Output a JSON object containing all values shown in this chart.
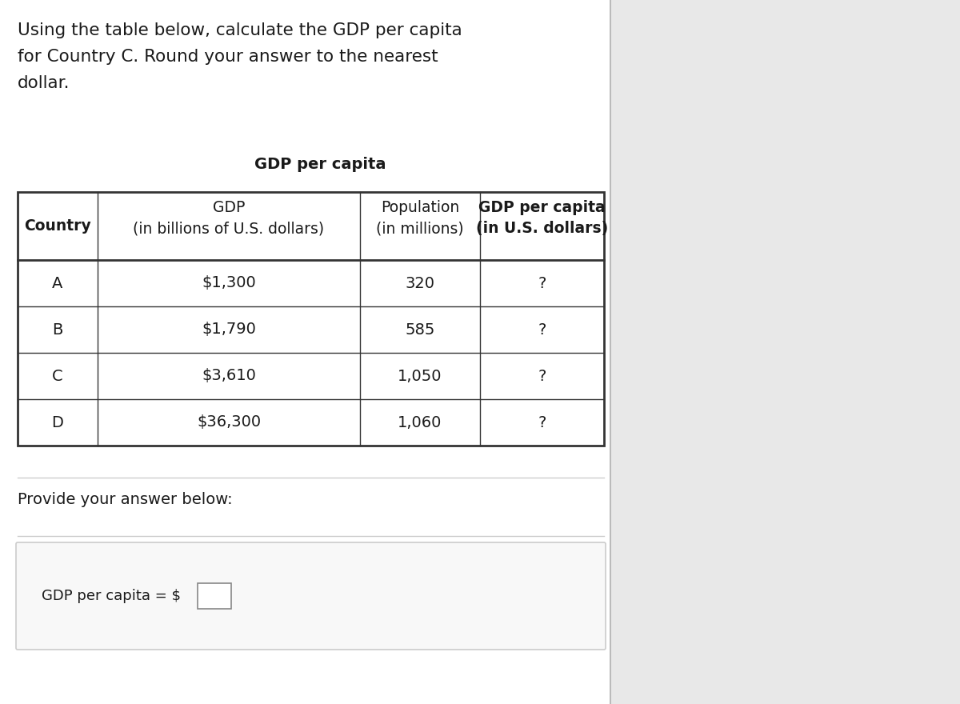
{
  "title_text": "Using the table below, calculate the GDP per capita\nfor Country C. Round your answer to the nearest\ndollar.",
  "table_super_title": "GDP per capita",
  "col_headers_line1": [
    "Country",
    "GDP",
    "Population",
    "GDP per capita"
  ],
  "col_headers_line2": [
    "",
    "(in billions of U.S. dollars)",
    "(in millions)",
    "(in U.S. dollars)"
  ],
  "rows": [
    [
      "A",
      "$1,300",
      "320",
      "?"
    ],
    [
      "B",
      "$1,790",
      "585",
      "?"
    ],
    [
      "C",
      "$3,610",
      "1,050",
      "?"
    ],
    [
      "D",
      "$36,300",
      "1,060",
      "?"
    ]
  ],
  "answer_label": "Provide your answer below:",
  "answer_field_label": "GDP per capita = $",
  "bg_color": "#ffffff",
  "right_panel_color": "#e8e8e8",
  "table_border_color": "#333333",
  "text_color": "#1a1a1a",
  "answer_box_border": "#cccccc",
  "answer_box_bg": "#f8f8f8",
  "input_box_border": "#888888",
  "divider_color": "#cccccc",
  "font_size_title": 15.5,
  "font_size_table_header": 13.5,
  "font_size_table_data": 14,
  "font_size_answer_label": 14,
  "font_size_answer_field": 13
}
